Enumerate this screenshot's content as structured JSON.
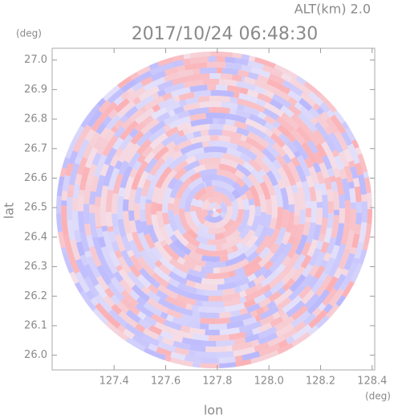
{
  "chart_data": {
    "type": "image",
    "title": "2017/10/24 06:48:30",
    "subtitle": "ALT(km) 2.0",
    "x_label": "lon",
    "y_label": "lat",
    "x_unit": "(deg)",
    "y_unit": "(deg)",
    "xlim": [
      127.16,
      128.41
    ],
    "ylim": [
      25.95,
      27.04
    ],
    "xticks": [
      127.4,
      127.6,
      127.8,
      {
        "value": 128,
        "label": "128.0"
      },
      128.2,
      128.4
    ],
    "yticks": [
      {
        "value": 26,
        "label": "26.0"
      },
      26.1,
      26.2,
      26.3,
      26.4,
      26.5,
      26.6,
      26.7,
      26.8,
      26.9,
      {
        "value": 27,
        "label": "27.0"
      }
    ]
  }
}
